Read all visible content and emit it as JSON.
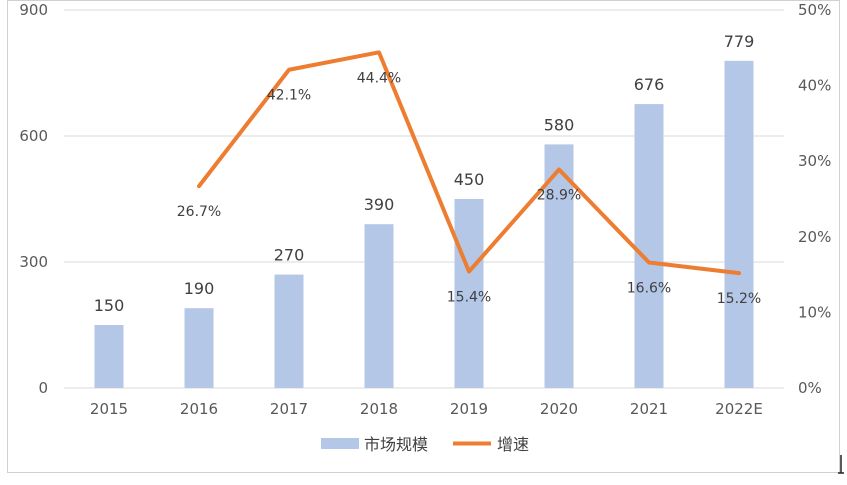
{
  "chart_data": {
    "type": "bar+line",
    "categories": [
      "2015",
      "2016",
      "2017",
      "2018",
      "2019",
      "2020",
      "2021",
      "2022E"
    ],
    "series": [
      {
        "name": "市场规模",
        "type": "bar",
        "axis": "left",
        "values": [
          150,
          190,
          270,
          390,
          450,
          580,
          676,
          779
        ],
        "labels": [
          "150",
          "190",
          "270",
          "390",
          "450",
          "580",
          "676",
          "779"
        ]
      },
      {
        "name": "增速",
        "type": "line",
        "axis": "right",
        "values": [
          null,
          26.7,
          42.1,
          44.4,
          15.4,
          28.9,
          16.6,
          15.2
        ],
        "labels": [
          "",
          "26.7%",
          "42.1%",
          "44.4%",
          "15.4%",
          "28.9%",
          "16.6%",
          "15.2%"
        ]
      }
    ],
    "y_left": {
      "min": 0,
      "max": 900,
      "ticks": [
        0,
        300,
        600,
        900
      ],
      "tick_labels": [
        "0",
        "300",
        "600",
        "900"
      ]
    },
    "y_right": {
      "min": 0,
      "max": 50,
      "ticks": [
        0,
        10,
        20,
        30,
        40,
        50
      ],
      "tick_labels": [
        "0%",
        "10%",
        "20%",
        "30%",
        "40%",
        "50%"
      ]
    },
    "grid": "horizontal",
    "legend": "bottom",
    "colors": {
      "bar": "#b4c7e7",
      "line": "#ed7d31",
      "grid": "#d9d9d9",
      "frame": "#d0d0d0"
    },
    "title": "",
    "xlabel": "",
    "ylabel": ""
  }
}
